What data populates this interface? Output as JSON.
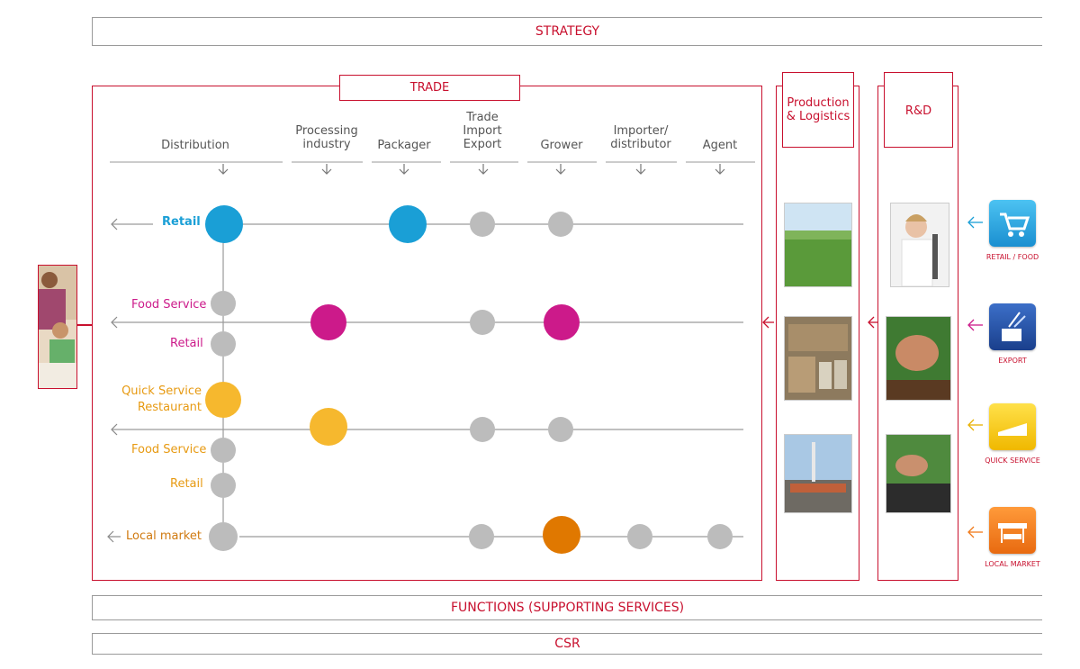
{
  "bands": {
    "strategy": "STRATEGY",
    "functions": "FUNCTIONS (SUPPORTING SERVICES)",
    "csr": "CSR"
  },
  "trade": {
    "title": "TRADE",
    "columns": [
      "Distribution",
      "Processing industry",
      "Packager",
      "Trade Import Export",
      "Grower",
      "Importer/ distributor",
      "Agent"
    ]
  },
  "production": {
    "title": "Production & Logistics"
  },
  "rnd": {
    "title": "R&D"
  },
  "rows": {
    "retail": {
      "label": "Retail",
      "color": "#1a9fd6"
    },
    "food": {
      "label_top": "Food Service",
      "label_bottom": "Retail",
      "color": "#cc1a8a"
    },
    "qsr": {
      "label_top": "Quick Service Restaurant",
      "label_mid": "Food Service",
      "label_bottom": "Retail",
      "color": "#f0a41a"
    },
    "local": {
      "label": "Local market",
      "color": "#e07800"
    }
  },
  "markets": [
    {
      "caption": "RETAIL / FOOD",
      "icon": "shopping-cart-icon",
      "color": "#1a9fd6"
    },
    {
      "caption": "EXPORT",
      "icon": "export-pot-icon",
      "color": "#1e4b9c"
    },
    {
      "caption": "QUICK SERVICE",
      "icon": "quick-service-icon",
      "color": "#f5c400"
    },
    {
      "caption": "LOCAL MARKET",
      "icon": "market-stall-icon",
      "color": "#f07a1a"
    }
  ],
  "colors": {
    "accent": "#c8102e",
    "grey_node": "#bcbcbc"
  }
}
